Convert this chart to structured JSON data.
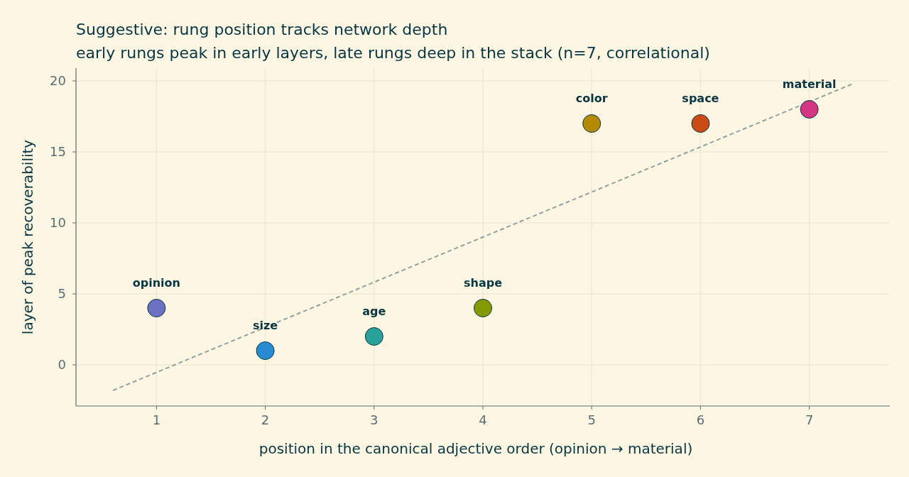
{
  "chart_data": {
    "type": "scatter",
    "title": "Suggestive: rung position tracks network depth",
    "subtitle": "early rungs peak in early layers, late rungs deep in the stack (n=7, correlational)",
    "xlabel": "position in the canonical adjective order  (opinion → material)",
    "ylabel": "layer of peak recoverability",
    "xlim": [
      0.26,
      7.74
    ],
    "ylim": [
      -2.9,
      20.9
    ],
    "xticks": [
      1,
      2,
      3,
      4,
      5,
      6,
      7
    ],
    "yticks": [
      0,
      5,
      10,
      15,
      20
    ],
    "grid": true,
    "series": [
      {
        "name": "opinion",
        "color": "#6c71c4",
        "marker": "circle",
        "x": [
          1
        ],
        "values": [
          4
        ]
      },
      {
        "name": "size",
        "color": "#268bd2",
        "marker": "circle",
        "x": [
          2
        ],
        "values": [
          1
        ]
      },
      {
        "name": "age",
        "color": "#2aa198",
        "marker": "circle",
        "x": [
          3
        ],
        "values": [
          2
        ]
      },
      {
        "name": "shape",
        "color": "#859900",
        "marker": "circle",
        "x": [
          4
        ],
        "values": [
          4
        ]
      },
      {
        "name": "color",
        "color": "#b58900",
        "marker": "circle",
        "x": [
          5
        ],
        "values": [
          17
        ]
      },
      {
        "name": "space",
        "color": "#cb4b16",
        "marker": "circle",
        "x": [
          6
        ],
        "values": [
          17
        ]
      },
      {
        "name": "material",
        "color": "#d33682",
        "marker": "circle",
        "x": [
          7
        ],
        "values": [
          18
        ]
      },
      {
        "type": "line",
        "color": "#93a1a1",
        "line_style": "dashed",
        "x": [
          0.6,
          7.4
        ],
        "values": [
          -1.8,
          19.8
        ]
      }
    ]
  }
}
